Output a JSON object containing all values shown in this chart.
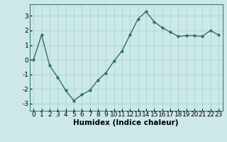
{
  "x": [
    0,
    1,
    2,
    3,
    4,
    5,
    6,
    7,
    8,
    9,
    10,
    11,
    12,
    13,
    14,
    15,
    16,
    17,
    18,
    19,
    20,
    21,
    22,
    23
  ],
  "y": [
    0.0,
    1.7,
    -0.4,
    -1.2,
    -2.1,
    -2.8,
    -2.4,
    -2.1,
    -1.4,
    -0.9,
    -0.1,
    0.6,
    1.7,
    2.8,
    3.3,
    2.6,
    2.2,
    1.9,
    1.6,
    1.65,
    1.65,
    1.6,
    2.0,
    1.7
  ],
  "line_color": "#2e7070",
  "marker_color": "#2e7070",
  "bg_color": "#cce8e8",
  "grid_color": "#aad4d4",
  "xlabel": "Humidex (Indice chaleur)",
  "ylim": [
    -3.5,
    3.8
  ],
  "xlim": [
    -0.5,
    23.5
  ],
  "yticks": [
    -3,
    -2,
    -1,
    0,
    1,
    2,
    3
  ],
  "xticks": [
    0,
    1,
    2,
    3,
    4,
    5,
    6,
    7,
    8,
    9,
    10,
    11,
    12,
    13,
    14,
    15,
    16,
    17,
    18,
    19,
    20,
    21,
    22,
    23
  ],
  "xlabel_fontsize": 7.5,
  "tick_fontsize": 6.5,
  "line_width": 1.0,
  "marker_size": 2.5
}
